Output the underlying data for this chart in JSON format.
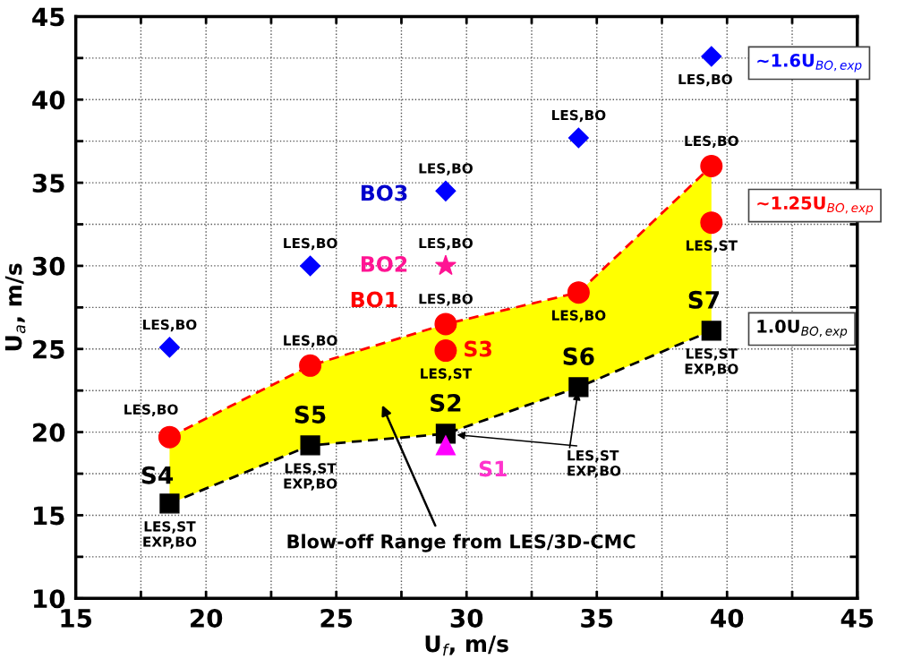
{
  "chart_data": {
    "type": "scatter",
    "xlabel": "U$_{f}$, m/s",
    "ylabel": "U$_{a}$, m/s",
    "xlim": [
      15,
      45
    ],
    "ylim": [
      10,
      45
    ],
    "xticks": [
      15,
      {
        "value": 17.5,
        "label": null
      },
      20,
      {
        "value": 22.5,
        "label": null
      },
      25,
      {
        "value": 27.5,
        "label": null
      },
      30,
      {
        "value": 32.5,
        "label": null
      },
      35,
      {
        "value": 37.5,
        "label": null
      },
      40,
      {
        "value": 42.5,
        "label": null
      },
      45
    ],
    "yticks": [
      10,
      {
        "value": 12.5,
        "label": null
      },
      15,
      {
        "value": 17.5,
        "label": null
      },
      20,
      {
        "value": 22.5,
        "label": null
      },
      25,
      {
        "value": 27.5,
        "label": null
      },
      30,
      {
        "value": 32.5,
        "label": null
      },
      35,
      {
        "value": 37.5,
        "label": null
      },
      40,
      {
        "value": 42.5,
        "label": null
      },
      45
    ],
    "grid": true,
    "legend": false,
    "series": [
      {
        "type": "line",
        "color": "#ff0000",
        "marker": "circle",
        "line_style": "dashed",
        "x": [
          18.6,
          24,
          29.2,
          34.3,
          39.4
        ],
        "values": [
          19.7,
          24.0,
          26.5,
          28.4,
          36.0
        ],
        "lower": [
          15.7,
          19.2,
          19.9,
          22.7,
          26.1
        ],
        "upper": [
          19.7,
          24.0,
          26.5,
          28.4,
          36.0
        ]
      },
      {
        "type": "line",
        "color": "#000000",
        "marker": "square",
        "line_style": "dashed",
        "x": [
          18.6,
          24,
          29.2,
          34.3,
          39.4
        ],
        "values": [
          15.7,
          19.2,
          19.9,
          22.7,
          26.1
        ]
      },
      {
        "color": "#ff0000",
        "marker": "circle",
        "x": [
          29.2,
          39.4
        ],
        "values": [
          24.9,
          32.6
        ]
      },
      {
        "color": "#0000ff",
        "marker": "diamond",
        "x": [
          18.6,
          24,
          29.2,
          34.3,
          39.4
        ],
        "values": [
          25.1,
          30.0,
          34.5,
          37.7,
          42.6
        ]
      },
      {
        "color": "#ff1493",
        "marker": "star",
        "x": [
          29.2
        ],
        "values": [
          30.0
        ]
      },
      {
        "color": "#ff00ff",
        "marker": "triangle",
        "x": [
          29.2
        ],
        "values": [
          19.2
        ]
      }
    ],
    "annotations": [
      {
        "text": "LES,BO",
        "x": 18.6,
        "y": 25.1
      },
      {
        "text": "LES,BO",
        "x": 24,
        "y": 30.0
      },
      {
        "text": "LES,BO",
        "x": 29.2,
        "y": 34.5
      },
      {
        "text": "LES,BO",
        "x": 34.3,
        "y": 37.7
      },
      {
        "text": "LES,BO",
        "x": 39.4,
        "y": 42.6
      },
      {
        "text": "LES,BO",
        "x": 18.6,
        "y": 19.7
      },
      {
        "text": "LES,BO",
        "x": 24,
        "y": 24.0
      },
      {
        "text": "LES,BO",
        "x": 29.2,
        "y": 30.0
      },
      {
        "text": "LES,BO",
        "x": 29.2,
        "y": 26.5
      },
      {
        "text": "LES,BO",
        "x": 34.3,
        "y": 28.4
      },
      {
        "text": "LES,BO",
        "x": 39.4,
        "y": 36.0
      },
      {
        "text": "LES,ST",
        "x": 29.2,
        "y": 24.9
      },
      {
        "text": "LES,ST",
        "x": 39.4,
        "y": 32.6
      },
      {
        "text": "S3",
        "x": 29.2,
        "y": 24.9
      },
      {
        "text": "BO1",
        "x": 29.2,
        "y": 26.5
      },
      {
        "text": "BO2",
        "x": 29.2,
        "y": 30.0
      },
      {
        "text": "BO3",
        "x": 29.2,
        "y": 34.5
      },
      {
        "text": "S4",
        "x": 18.6,
        "y": 15.7
      },
      {
        "text": "S5",
        "x": 24,
        "y": 19.2
      },
      {
        "text": "S2",
        "x": 29.2,
        "y": 19.9
      },
      {
        "text": "S6",
        "x": 34.3,
        "y": 22.7
      },
      {
        "text": "S7",
        "x": 39.4,
        "y": 26.1
      },
      {
        "text": "S1",
        "x": 29.2,
        "y": 19.2
      },
      {
        "text": "LES,ST\nEXP,BO",
        "x": 18.6,
        "y": 15.7
      },
      {
        "text": "LES,ST\nEXP,BO",
        "x": 24,
        "y": 19.2
      },
      {
        "text": "LES,ST\nEXP,BO",
        "x": 39.4,
        "y": 26.1
      },
      {
        "text": "LES,ST\nEXP,BO",
        "x": 34.3,
        "y": 22.7
      },
      "Blow-off Range from LES/3D-CMC",
      "~1.6U$_{BO,exp}$",
      "~1.25U$_{BO,exp}$",
      "1.0U$_{BO,exp}$"
    ]
  }
}
